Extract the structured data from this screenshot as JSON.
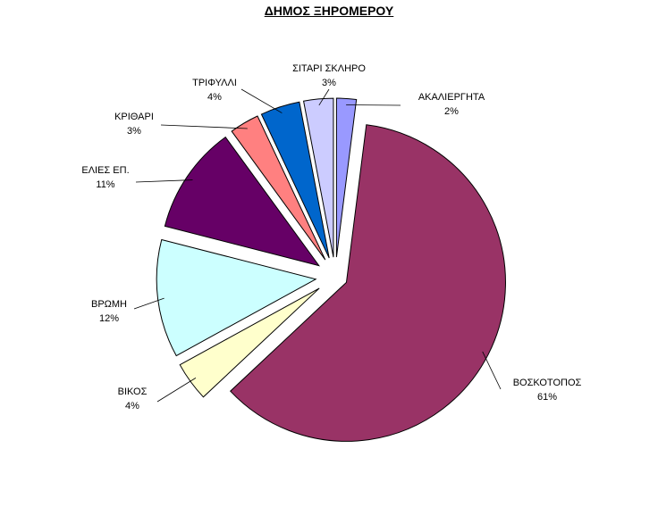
{
  "chart_data": {
    "type": "pie",
    "title": "ΔΗΜΟΣ ΞΗΡΟΜΕΡΟΥ",
    "slices": [
      {
        "label": "ΑΚΑΛΙΕΡΓΗΤΑ",
        "percent_label": "2%",
        "value": 2,
        "color": "#9999ff"
      },
      {
        "label": "ΒΟΣΚΟΤΟΠΟΣ",
        "percent_label": "61%",
        "value": 61,
        "color": "#993366"
      },
      {
        "label": "ΒΙΚΟΣ",
        "percent_label": "4%",
        "value": 4,
        "color": "#ffffcc"
      },
      {
        "label": "ΒΡΩΜΗ",
        "percent_label": "12%",
        "value": 12,
        "color": "#ccffff"
      },
      {
        "label": "ΕΛΙΕΣ ΕΠ.",
        "percent_label": "11%",
        "value": 11,
        "color": "#660066"
      },
      {
        "label": "ΚΡΙΘΑΡΙ",
        "percent_label": "3%",
        "value": 3,
        "color": "#ff8080"
      },
      {
        "label": "ΤΡΙΦΥΛΛΙ",
        "percent_label": "4%",
        "value": 4,
        "color": "#0066cc"
      },
      {
        "label": "ΣΙΤΑΡΙ ΣΚΛΗΡΟ",
        "percent_label": "3%",
        "value": 3,
        "color": "#ccccff"
      }
    ],
    "exploded": true,
    "legend": "none",
    "labels": "outside-with-leader-lines"
  }
}
